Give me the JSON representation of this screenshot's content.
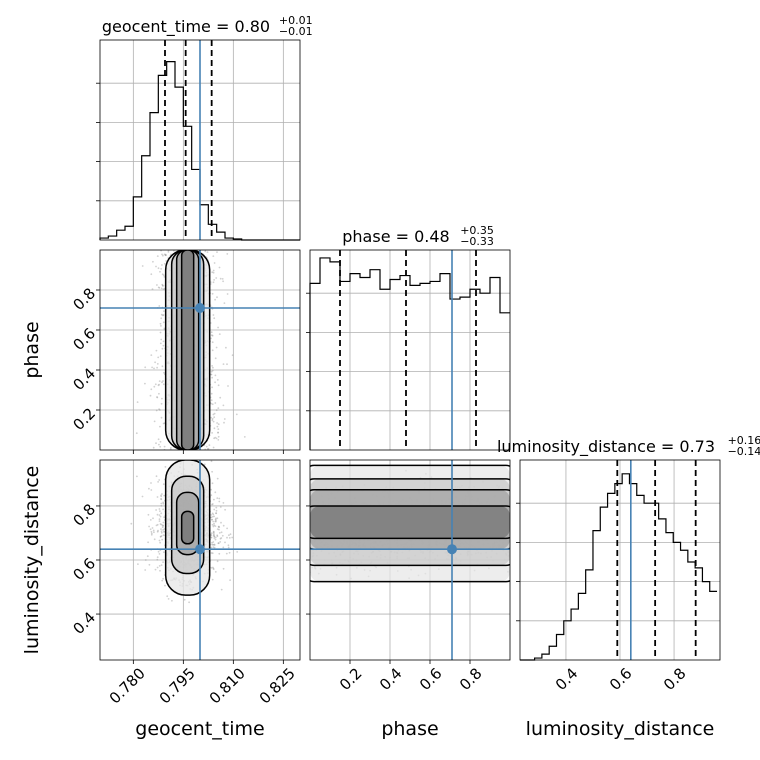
{
  "chart_data": {
    "type": "corner",
    "parameters": [
      {
        "name": "geocent_time",
        "axis_label": "geocent_time",
        "title_prefix": "geocent_time = ",
        "median": "0.80",
        "err_plus": "+0.01",
        "err_minus": "−0.01",
        "range": [
          0.77,
          0.83
        ],
        "ticks": [
          0.78,
          0.795,
          0.81,
          0.825
        ],
        "tick_labels": [
          "0.780",
          "0.795",
          "0.810",
          "0.825"
        ],
        "truth": 0.8,
        "quantiles": [
          0.7895,
          0.7957,
          0.8035
        ],
        "hist_edges_start": 0.77,
        "hist_bin_width": 0.0025,
        "hist_counts": [
          0.01,
          0.02,
          0.05,
          0.07,
          0.22,
          0.43,
          0.65,
          0.84,
          0.91,
          0.78,
          0.58,
          0.36,
          0.18,
          0.08,
          0.04,
          0.01,
          0.005,
          0,
          0,
          0,
          0,
          0,
          0,
          0
        ]
      },
      {
        "name": "phase",
        "axis_label": "phase",
        "title_prefix": "phase = ",
        "median": "0.48",
        "err_plus": "+0.35",
        "err_minus": "−0.33",
        "range": [
          0.0,
          1.0
        ],
        "ticks": [
          0.2,
          0.4,
          0.6,
          0.8
        ],
        "tick_labels": [
          "0.2",
          "0.4",
          "0.6",
          "0.8"
        ],
        "truth": 0.71,
        "quantiles": [
          0.15,
          0.48,
          0.83
        ],
        "hist_edges_start": 0.0,
        "hist_bin_width": 0.05,
        "hist_counts": [
          0.85,
          0.98,
          0.96,
          0.86,
          0.9,
          0.88,
          0.92,
          0.82,
          0.87,
          0.89,
          0.84,
          0.85,
          0.86,
          0.9,
          0.77,
          0.78,
          0.82,
          0.8,
          0.88,
          0.7
        ]
      },
      {
        "name": "luminosity_distance",
        "axis_label": "luminosity_distance",
        "title_prefix": "luminosity_distance = ",
        "median": "0.73",
        "err_plus": "+0.16",
        "err_minus": "−0.14",
        "range": [
          0.23,
          0.97
        ],
        "ticks": [
          0.4,
          0.6,
          0.8
        ],
        "tick_labels": [
          "0.4",
          "0.6",
          "0.8"
        ],
        "truth": 0.64,
        "quantiles": [
          0.59,
          0.73,
          0.88
        ],
        "hist_edges_start": 0.23,
        "hist_bin_width": 0.027,
        "hist_counts": [
          0.0,
          0.0,
          0.01,
          0.03,
          0.07,
          0.13,
          0.2,
          0.26,
          0.34,
          0.46,
          0.66,
          0.78,
          0.85,
          0.9,
          0.95,
          0.9,
          0.84,
          0.8,
          0.8,
          0.72,
          0.65,
          0.6,
          0.56,
          0.5,
          0.47,
          0.4,
          0.35
        ]
      }
    ],
    "pairs": [
      {
        "x_param": "geocent_time",
        "y_param": "phase",
        "x_ticks": [
          0.78,
          0.795,
          0.81,
          0.825
        ],
        "y_ticks": [
          0.2,
          0.4,
          0.6,
          0.8
        ],
        "y_tick_labels": [
          "0.2",
          "0.4",
          "0.6",
          "0.8"
        ]
      },
      {
        "x_param": "geocent_time",
        "y_param": "luminosity_distance",
        "x_ticks": [
          0.78,
          0.795,
          0.81,
          0.825
        ],
        "y_ticks": [
          0.4,
          0.6,
          0.8
        ],
        "y_tick_labels": [
          "0.4",
          "0.6",
          "0.8"
        ]
      },
      {
        "x_param": "phase",
        "y_param": "luminosity_distance",
        "x_ticks": [
          0.2,
          0.4,
          0.6,
          0.8
        ],
        "y_ticks": [
          0.4,
          0.6,
          0.8
        ],
        "y_tick_labels": [
          "0.4",
          "0.6",
          "0.8"
        ]
      }
    ],
    "colors": {
      "truth": "#4682b4",
      "hist": "#000000",
      "grid": "#b0b0b0",
      "points": "#999999"
    },
    "grid": true
  }
}
